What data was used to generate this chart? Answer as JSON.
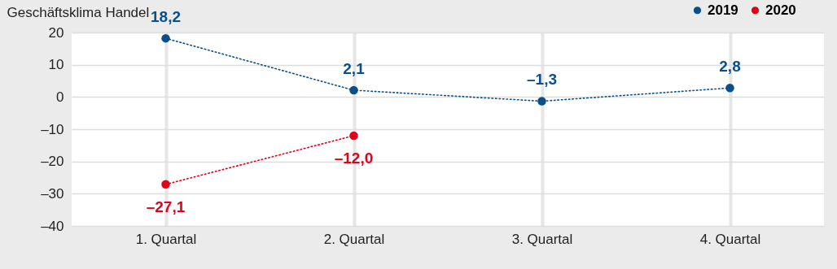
{
  "chart_data": {
    "type": "line",
    "ylabel": "Geschäftsklima Handel",
    "categories": [
      "1. Quartal",
      "2. Quartal",
      "3. Quartal",
      "4. Quartal"
    ],
    "series": [
      {
        "name": "2019",
        "color": "#0b4f8a",
        "values": [
          18.2,
          2.1,
          -1.3,
          2.8
        ],
        "value_labels": [
          "18,2",
          "2,1",
          "–1,3",
          "2,8"
        ]
      },
      {
        "name": "2020",
        "color": "#e2001a",
        "values": [
          -27.1,
          -12.0,
          null,
          null
        ],
        "value_labels": [
          "–27,1",
          "–12,0",
          null,
          null
        ]
      }
    ],
    "ylim": [
      -40,
      20
    ],
    "yticks": [
      {
        "value": -40,
        "label": "–40"
      },
      {
        "value": -30,
        "label": "–30"
      },
      {
        "value": -20,
        "label": "–20"
      },
      {
        "value": -10,
        "label": "–10"
      },
      0,
      10,
      20
    ],
    "grid": true,
    "legend": "top right",
    "marker": "circle",
    "line_style": "dotted"
  }
}
